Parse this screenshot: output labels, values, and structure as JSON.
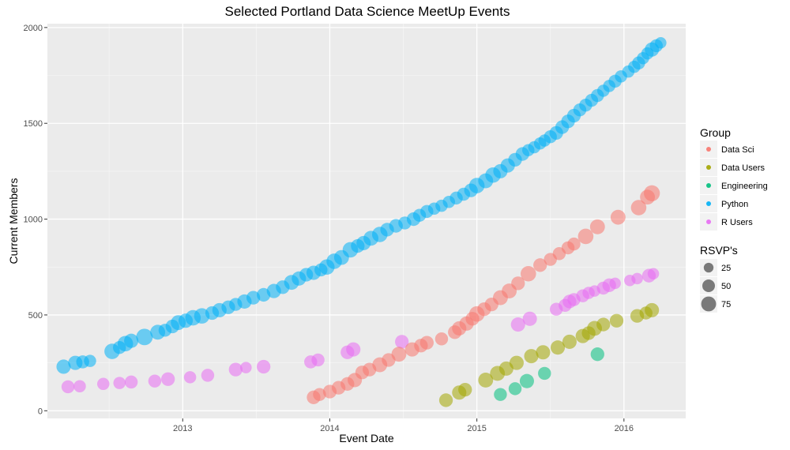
{
  "chart_data": {
    "type": "scatter",
    "title": "Selected Portland Data Science MeetUp Events",
    "xlabel": "Event Date",
    "ylabel": "Current Members",
    "xlim": [
      2012.08,
      2016.42
    ],
    "ylim": [
      -40,
      2020
    ],
    "xticks": [
      2013,
      2014,
      2015,
      2016
    ],
    "xtick_labels": [
      "2013",
      "2014",
      "2015",
      "2016"
    ],
    "yticks": [
      0,
      500,
      1000,
      1500,
      2000
    ],
    "ytick_labels": [
      "0",
      "500",
      "1000",
      "1500",
      "2000"
    ],
    "grid": true,
    "legend": {
      "position": "right",
      "color_title": "Group",
      "size_title": "RSVP's",
      "size_entries": [
        25,
        50,
        75
      ]
    },
    "colors": {
      "Data Sci": "#f8766d",
      "Data Users": "#a3a500",
      "Engineering": "#00bf7d",
      "Python": "#00b0f6",
      "R Users": "#e76bf3"
    },
    "series": [
      {
        "name": "Python",
        "points": [
          [
            2012.19,
            230,
            45
          ],
          [
            2012.27,
            250,
            45
          ],
          [
            2012.32,
            255,
            35
          ],
          [
            2012.37,
            260,
            30
          ],
          [
            2012.52,
            310,
            55
          ],
          [
            2012.57,
            330,
            35
          ],
          [
            2012.61,
            350,
            55
          ],
          [
            2012.65,
            365,
            45
          ],
          [
            2012.74,
            385,
            65
          ],
          [
            2012.83,
            410,
            50
          ],
          [
            2012.88,
            420,
            35
          ],
          [
            2012.93,
            440,
            40
          ],
          [
            2012.97,
            460,
            50
          ],
          [
            2013.02,
            470,
            45
          ],
          [
            2013.07,
            485,
            55
          ],
          [
            2013.13,
            495,
            55
          ],
          [
            2013.2,
            510,
            40
          ],
          [
            2013.25,
            525,
            45
          ],
          [
            2013.31,
            540,
            40
          ],
          [
            2013.36,
            555,
            35
          ],
          [
            2013.42,
            570,
            45
          ],
          [
            2013.48,
            590,
            40
          ],
          [
            2013.55,
            605,
            40
          ],
          [
            2013.62,
            625,
            45
          ],
          [
            2013.68,
            645,
            40
          ],
          [
            2013.74,
            670,
            50
          ],
          [
            2013.79,
            690,
            45
          ],
          [
            2013.84,
            710,
            40
          ],
          [
            2013.89,
            720,
            45
          ],
          [
            2013.94,
            735,
            35
          ],
          [
            2013.98,
            750,
            55
          ],
          [
            2014.03,
            780,
            55
          ],
          [
            2014.08,
            800,
            50
          ],
          [
            2014.14,
            840,
            55
          ],
          [
            2014.19,
            860,
            40
          ],
          [
            2014.23,
            875,
            45
          ],
          [
            2014.28,
            900,
            50
          ],
          [
            2014.34,
            920,
            55
          ],
          [
            2014.39,
            945,
            40
          ],
          [
            2014.45,
            965,
            40
          ],
          [
            2014.51,
            980,
            35
          ],
          [
            2014.57,
            1000,
            40
          ],
          [
            2014.61,
            1020,
            35
          ],
          [
            2014.66,
            1040,
            35
          ],
          [
            2014.71,
            1055,
            30
          ],
          [
            2014.76,
            1070,
            30
          ],
          [
            2014.81,
            1090,
            30
          ],
          [
            2014.86,
            1110,
            35
          ],
          [
            2014.91,
            1130,
            35
          ],
          [
            2014.96,
            1150,
            40
          ],
          [
            2015.0,
            1175,
            55
          ],
          [
            2015.06,
            1200,
            50
          ],
          [
            2015.11,
            1230,
            55
          ],
          [
            2015.16,
            1250,
            45
          ],
          [
            2015.21,
            1280,
            45
          ],
          [
            2015.26,
            1310,
            40
          ],
          [
            2015.31,
            1340,
            40
          ],
          [
            2015.35,
            1360,
            30
          ],
          [
            2015.39,
            1375,
            30
          ],
          [
            2015.43,
            1395,
            30
          ],
          [
            2015.46,
            1410,
            30
          ],
          [
            2015.5,
            1430,
            35
          ],
          [
            2015.54,
            1450,
            40
          ],
          [
            2015.58,
            1480,
            40
          ],
          [
            2015.62,
            1510,
            40
          ],
          [
            2015.66,
            1540,
            40
          ],
          [
            2015.7,
            1570,
            35
          ],
          [
            2015.74,
            1595,
            35
          ],
          [
            2015.78,
            1620,
            35
          ],
          [
            2015.82,
            1645,
            35
          ],
          [
            2015.86,
            1670,
            30
          ],
          [
            2015.9,
            1695,
            30
          ],
          [
            2015.94,
            1720,
            35
          ],
          [
            2015.98,
            1745,
            30
          ],
          [
            2016.03,
            1770,
            30
          ],
          [
            2016.07,
            1795,
            30
          ],
          [
            2016.1,
            1815,
            35
          ],
          [
            2016.13,
            1840,
            30
          ],
          [
            2016.16,
            1865,
            30
          ],
          [
            2016.19,
            1885,
            45
          ],
          [
            2016.22,
            1905,
            35
          ],
          [
            2016.25,
            1920,
            25
          ]
        ]
      },
      {
        "name": "R Users",
        "points": [
          [
            2012.22,
            125,
            35
          ],
          [
            2012.3,
            128,
            30
          ],
          [
            2012.46,
            140,
            30
          ],
          [
            2012.57,
            145,
            30
          ],
          [
            2012.65,
            150,
            35
          ],
          [
            2012.81,
            155,
            35
          ],
          [
            2012.9,
            165,
            40
          ],
          [
            2013.05,
            175,
            30
          ],
          [
            2013.17,
            185,
            35
          ],
          [
            2013.36,
            215,
            40
          ],
          [
            2013.43,
            225,
            25
          ],
          [
            2013.55,
            230,
            40
          ],
          [
            2013.87,
            255,
            35
          ],
          [
            2013.92,
            265,
            35
          ],
          [
            2014.12,
            305,
            40
          ],
          [
            2014.16,
            320,
            45
          ],
          [
            2014.49,
            360,
            40
          ],
          [
            2015.28,
            450,
            45
          ],
          [
            2015.36,
            480,
            45
          ],
          [
            2015.54,
            530,
            35
          ],
          [
            2015.6,
            550,
            35
          ],
          [
            2015.63,
            570,
            40
          ],
          [
            2015.66,
            580,
            35
          ],
          [
            2015.72,
            600,
            35
          ],
          [
            2015.76,
            615,
            30
          ],
          [
            2015.8,
            625,
            25
          ],
          [
            2015.86,
            640,
            35
          ],
          [
            2015.9,
            655,
            40
          ],
          [
            2015.94,
            665,
            25
          ],
          [
            2016.04,
            680,
            25
          ],
          [
            2016.09,
            690,
            25
          ],
          [
            2016.17,
            705,
            40
          ],
          [
            2016.2,
            715,
            25
          ]
        ]
      },
      {
        "name": "Data Sci",
        "points": [
          [
            2013.89,
            70,
            40
          ],
          [
            2013.93,
            85,
            35
          ],
          [
            2014.0,
            100,
            40
          ],
          [
            2014.06,
            120,
            40
          ],
          [
            2014.12,
            140,
            40
          ],
          [
            2014.17,
            160,
            45
          ],
          [
            2014.22,
            200,
            40
          ],
          [
            2014.27,
            215,
            40
          ],
          [
            2014.34,
            240,
            50
          ],
          [
            2014.4,
            265,
            40
          ],
          [
            2014.47,
            295,
            50
          ],
          [
            2014.56,
            320,
            45
          ],
          [
            2014.62,
            340,
            40
          ],
          [
            2014.66,
            355,
            40
          ],
          [
            2014.76,
            375,
            35
          ],
          [
            2014.85,
            410,
            40
          ],
          [
            2014.88,
            430,
            45
          ],
          [
            2014.93,
            455,
            45
          ],
          [
            2014.97,
            480,
            40
          ],
          [
            2015.0,
            505,
            55
          ],
          [
            2015.05,
            530,
            40
          ],
          [
            2015.1,
            555,
            40
          ],
          [
            2015.16,
            590,
            50
          ],
          [
            2015.22,
            625,
            50
          ],
          [
            2015.28,
            665,
            40
          ],
          [
            2015.35,
            715,
            55
          ],
          [
            2015.43,
            760,
            40
          ],
          [
            2015.5,
            790,
            35
          ],
          [
            2015.56,
            820,
            35
          ],
          [
            2015.62,
            850,
            35
          ],
          [
            2015.66,
            870,
            35
          ],
          [
            2015.74,
            910,
            55
          ],
          [
            2015.82,
            960,
            50
          ],
          [
            2015.96,
            1010,
            50
          ],
          [
            2016.1,
            1060,
            55
          ],
          [
            2016.16,
            1115,
            50
          ],
          [
            2016.19,
            1135,
            60
          ]
        ]
      },
      {
        "name": "Data Users",
        "points": [
          [
            2014.79,
            55,
            40
          ],
          [
            2014.88,
            95,
            45
          ],
          [
            2014.92,
            110,
            40
          ],
          [
            2015.06,
            160,
            50
          ],
          [
            2015.14,
            195,
            50
          ],
          [
            2015.2,
            220,
            45
          ],
          [
            2015.27,
            250,
            45
          ],
          [
            2015.37,
            285,
            45
          ],
          [
            2015.45,
            305,
            45
          ],
          [
            2015.55,
            330,
            45
          ],
          [
            2015.63,
            360,
            45
          ],
          [
            2015.72,
            390,
            45
          ],
          [
            2015.76,
            405,
            40
          ],
          [
            2015.8,
            430,
            50
          ],
          [
            2015.86,
            450,
            40
          ],
          [
            2015.95,
            470,
            40
          ],
          [
            2016.09,
            495,
            40
          ],
          [
            2016.15,
            510,
            35
          ],
          [
            2016.19,
            525,
            45
          ]
        ]
      },
      {
        "name": "Engineering",
        "points": [
          [
            2015.16,
            85,
            35
          ],
          [
            2015.26,
            115,
            35
          ],
          [
            2015.34,
            155,
            45
          ],
          [
            2015.46,
            195,
            35
          ],
          [
            2015.82,
            295,
            40
          ]
        ]
      }
    ]
  }
}
